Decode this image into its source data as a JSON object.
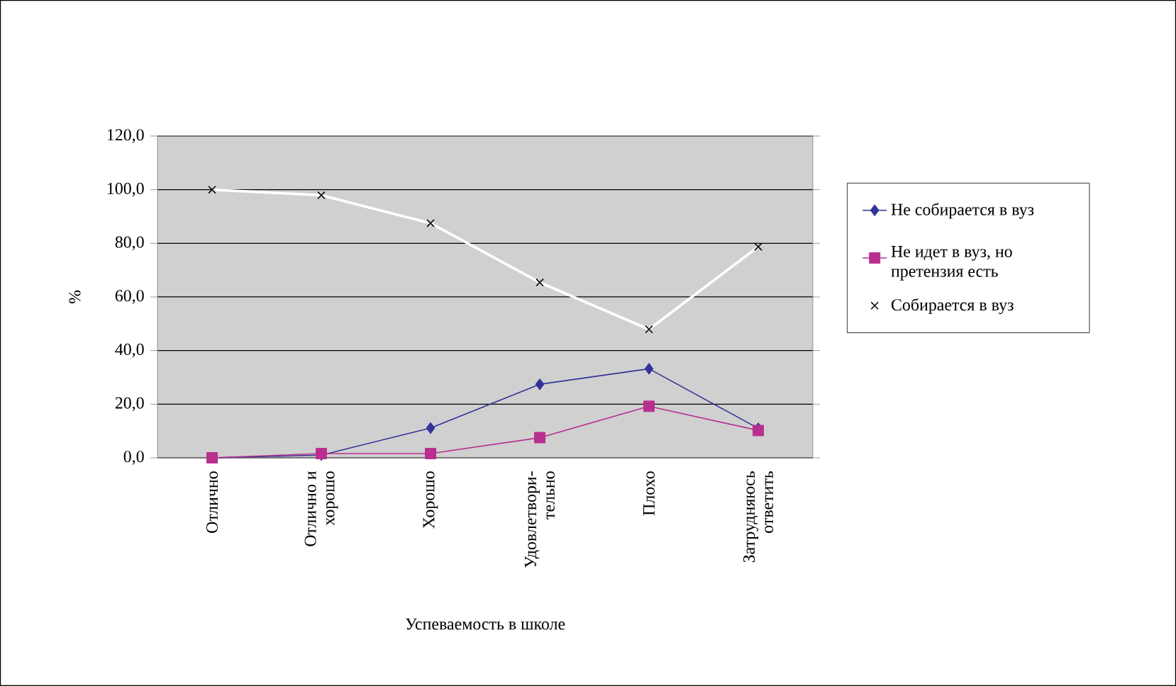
{
  "chart_data": {
    "type": "line",
    "xlabel": "Успеваемость в школе",
    "ylabel": "%",
    "categories": [
      "Отлично",
      "Отлично и хорошо",
      "Хорошо",
      "Удовлетвори-тельно",
      "Плохо",
      "Затрудняюсь ответить"
    ],
    "series": [
      {
        "name": "Не собирается в вуз",
        "color": "#333399",
        "marker": "diamond",
        "values": [
          0,
          1,
          11.1,
          27.4,
          33.2,
          11
        ]
      },
      {
        "name": "Не идет в вуз, но претензия есть",
        "color": "#b8308f",
        "marker": "square",
        "values": [
          0,
          1.6,
          1.6,
          7.5,
          19.2,
          10.2
        ]
      },
      {
        "name": "Собирается в вуз",
        "color": "#ffffff",
        "marker": "cross",
        "values": [
          100,
          97.9,
          87.5,
          65.4,
          47.9,
          78.7
        ]
      }
    ],
    "ylim": [
      0,
      120
    ],
    "yticks": [
      {
        "value": 0,
        "label": "0,0"
      },
      {
        "value": 20,
        "label": "20,0"
      },
      {
        "value": 40,
        "label": "40,0"
      },
      {
        "value": 60,
        "label": "60,0"
      },
      {
        "value": 80,
        "label": "80,0"
      },
      {
        "value": 100,
        "label": "100,0"
      },
      {
        "value": 120,
        "label": "120,0"
      }
    ],
    "grid": "y",
    "legend": "right",
    "line_style": "solid"
  }
}
